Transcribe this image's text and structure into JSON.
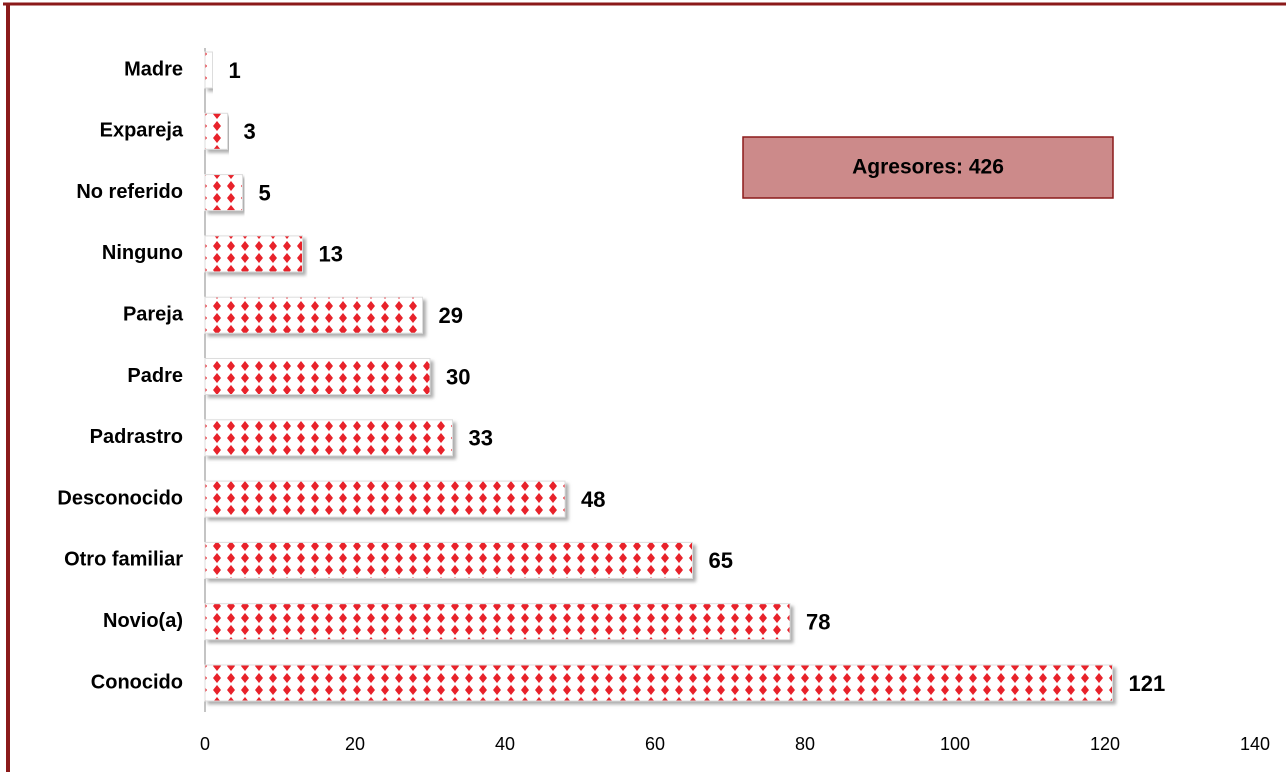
{
  "chart_data": {
    "type": "bar",
    "orientation": "horizontal",
    "categories": [
      "Madre",
      "Expareja",
      "No referido",
      "Ninguno",
      "Pareja",
      "Padre",
      "Padrastro",
      "Desconocido",
      "Otro familiar",
      "Novio(a)",
      "Conocido"
    ],
    "values": [
      1,
      3,
      5,
      13,
      29,
      30,
      33,
      48,
      65,
      78,
      121
    ],
    "color": "#e8202a",
    "xlim": [
      0,
      140
    ],
    "xticks": [
      0,
      20,
      40,
      60,
      80,
      100,
      120,
      140
    ],
    "annotation": "Agresores: 426"
  }
}
